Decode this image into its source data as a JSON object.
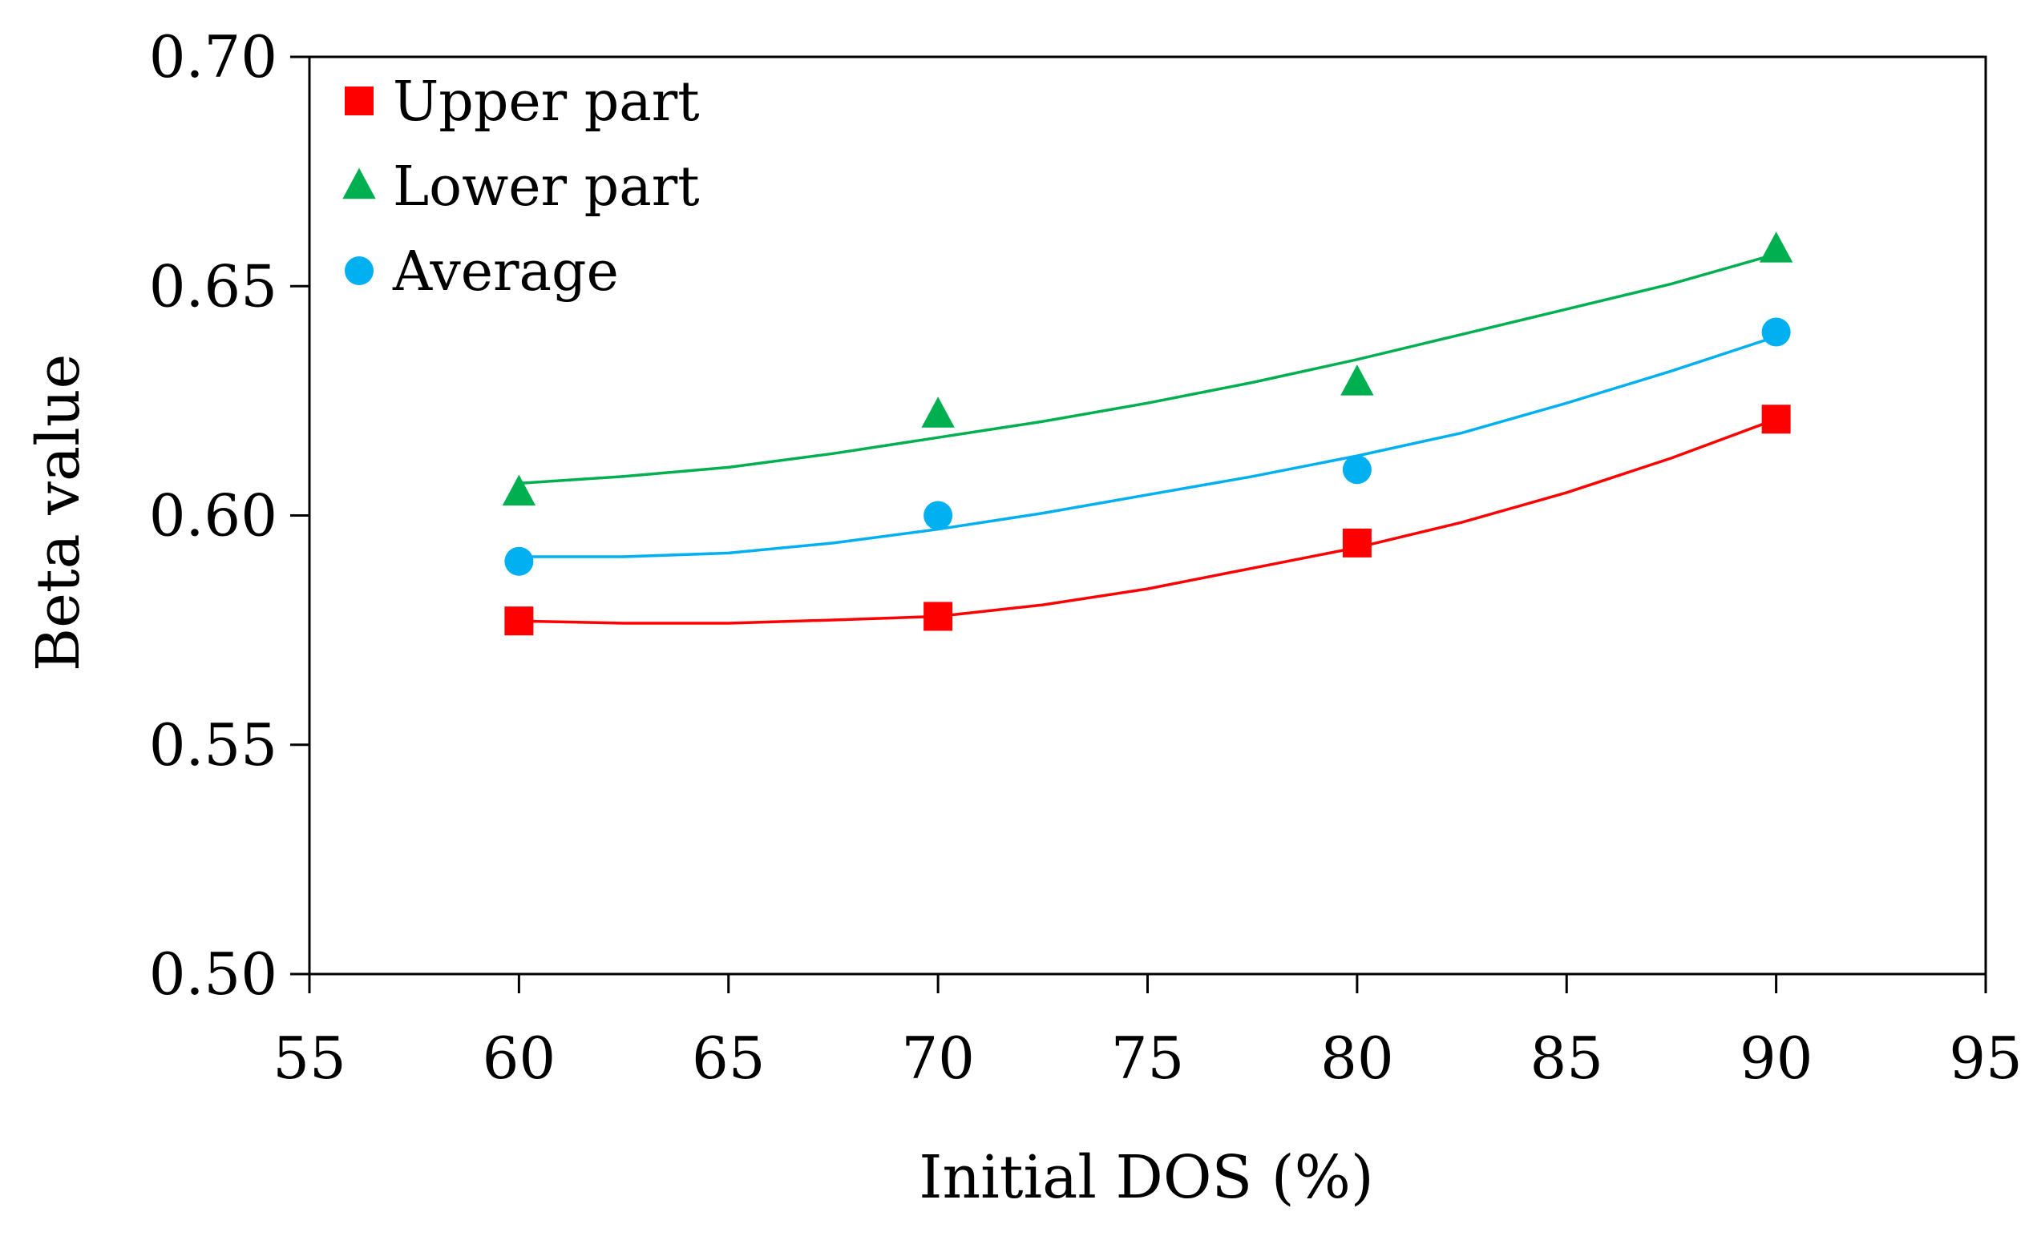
{
  "chart_data": {
    "type": "scatter",
    "title": "",
    "xlabel": "Initial DOS (%)",
    "ylabel": "Beta value",
    "xlim": [
      55,
      95
    ],
    "ylim": [
      0.5,
      0.7
    ],
    "xticks": [
      55,
      60,
      65,
      70,
      75,
      80,
      85,
      90,
      95
    ],
    "xtick_labels": [
      "55",
      "60",
      "65",
      "70",
      "75",
      "80",
      "85",
      "90",
      "95"
    ],
    "yticks": [
      0.5,
      0.55,
      0.6,
      0.65,
      0.7
    ],
    "ytick_labels": [
      "0.50",
      "0.55",
      "0.60",
      "0.65",
      "0.70"
    ],
    "grid": false,
    "legend_position": "top-left",
    "series": [
      {
        "name": "Upper part",
        "marker": "square",
        "color": "#ff0000",
        "x": [
          60,
          70,
          80,
          90
        ],
        "y": [
          0.577,
          0.578,
          0.594,
          0.621
        ],
        "trendline": [
          [
            60,
            0.577
          ],
          [
            62.5,
            0.5765
          ],
          [
            65,
            0.5765
          ],
          [
            67.5,
            0.5772
          ],
          [
            70,
            0.578
          ],
          [
            72.5,
            0.5805
          ],
          [
            75,
            0.584
          ],
          [
            77.5,
            0.5885
          ],
          [
            80,
            0.593
          ],
          [
            82.5,
            0.5985
          ],
          [
            85,
            0.605
          ],
          [
            87.5,
            0.6125
          ],
          [
            90,
            0.621
          ]
        ]
      },
      {
        "name": "Lower part",
        "marker": "triangle",
        "color": "#00b050",
        "x": [
          60,
          70,
          80,
          90
        ],
        "y": [
          0.605,
          0.622,
          0.629,
          0.658
        ],
        "trendline": [
          [
            60,
            0.607
          ],
          [
            62.5,
            0.6085
          ],
          [
            65,
            0.6105
          ],
          [
            67.5,
            0.6135
          ],
          [
            70,
            0.617
          ],
          [
            72.5,
            0.6205
          ],
          [
            75,
            0.6245
          ],
          [
            77.5,
            0.629
          ],
          [
            80,
            0.634
          ],
          [
            82.5,
            0.6395
          ],
          [
            85,
            0.645
          ],
          [
            87.5,
            0.6505
          ],
          [
            90,
            0.657
          ]
        ]
      },
      {
        "name": "Average",
        "marker": "circle",
        "color": "#00b0f0",
        "x": [
          60,
          70,
          80,
          90
        ],
        "y": [
          0.59,
          0.6,
          0.61,
          0.64
        ],
        "trendline": [
          [
            60,
            0.591
          ],
          [
            62.5,
            0.591
          ],
          [
            65,
            0.5918
          ],
          [
            67.5,
            0.594
          ],
          [
            70,
            0.597
          ],
          [
            72.5,
            0.6005
          ],
          [
            75,
            0.6045
          ],
          [
            77.5,
            0.6085
          ],
          [
            80,
            0.613
          ],
          [
            82.5,
            0.618
          ],
          [
            85,
            0.6245
          ],
          [
            87.5,
            0.6315
          ],
          [
            90,
            0.639
          ]
        ]
      }
    ]
  }
}
